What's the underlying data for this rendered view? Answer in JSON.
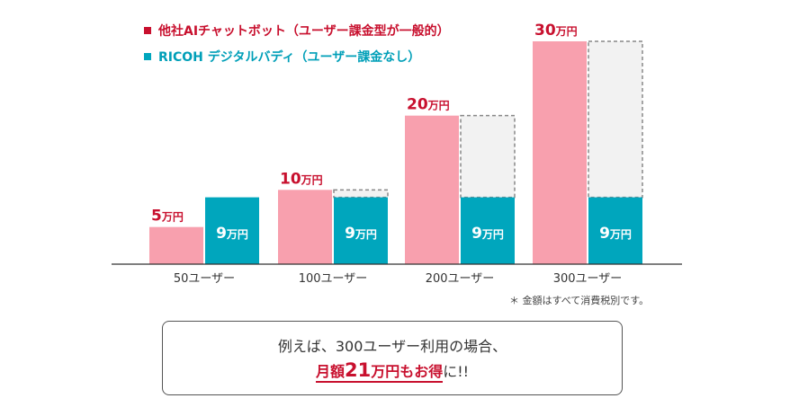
{
  "legend": [
    {
      "label": "他社AIチャットボット（ユーザー課金型が一般的）",
      "color": "#c8102e"
    },
    {
      "label": "RICOH デジタルバディ（ユーザー課金なし）",
      "color": "#009fb8"
    }
  ],
  "chart_data": {
    "type": "bar",
    "categories": [
      "50ユーザー",
      "100ユーザー",
      "200ユーザー",
      "300ユーザー"
    ],
    "unit": "万円",
    "series": [
      {
        "name": "他社AIチャットボット（ユーザー課金型が一般的）",
        "values": [
          5,
          10,
          20,
          30
        ],
        "color": "#f8a0ae",
        "label_color": "#c8102e"
      },
      {
        "name": "RICOH デジタルバディ（ユーザー課金なし）",
        "values": [
          9,
          9,
          9,
          9
        ],
        "color": "#00a6bd",
        "label_color": "#ffffff"
      }
    ],
    "savings_outline": {
      "reference_series": 0,
      "fill": "#f2f2f2",
      "stroke": "#888888"
    },
    "ylim": [
      0,
      30
    ],
    "xlabel": "",
    "ylabel": ""
  },
  "note": "＊ 金額はすべて消費税別です。",
  "callout": {
    "line1": "例えば、300ユーザー利用の場合、",
    "monthly_prefix": "月額",
    "amount": "21",
    "amount_unit": "万円もお得",
    "suffix": "に!!"
  }
}
